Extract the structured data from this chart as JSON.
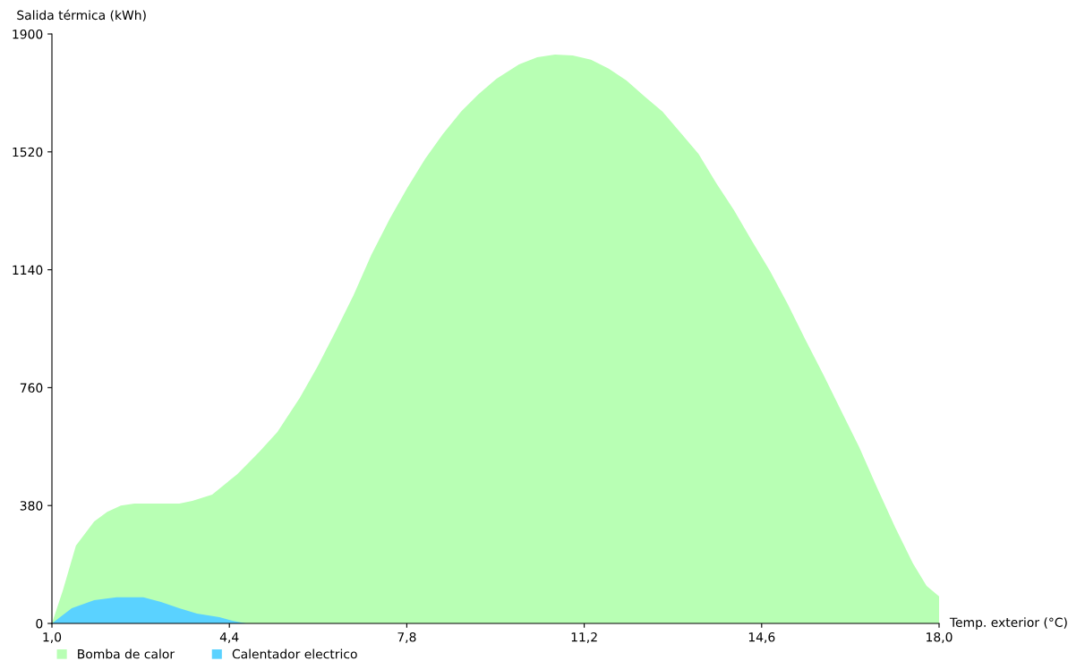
{
  "chart_data": {
    "type": "area",
    "ylabel": "Salida térmica (kWh)",
    "xlabel": "Temp. exterior (°C)",
    "xlim": [
      1.0,
      18.0
    ],
    "ylim": [
      0,
      1900
    ],
    "xticks": [
      {
        "value": 1.0,
        "label": "1,0"
      },
      {
        "value": 4.4,
        "label": "4,4"
      },
      {
        "value": 7.8,
        "label": "7,8"
      },
      {
        "value": 11.2,
        "label": "11,2"
      },
      {
        "value": 14.6,
        "label": "14,6"
      },
      {
        "value": 18.0,
        "label": "18,0"
      }
    ],
    "yticks": [
      0,
      380,
      760,
      1140,
      1520,
      1900
    ],
    "grid": false,
    "legend": "bottom left",
    "series": [
      {
        "name": "Bomba de calor",
        "color": "#b8ffb4",
        "x": [
          1.0,
          1.21,
          1.46,
          1.81,
          2.06,
          2.32,
          2.58,
          3.44,
          3.69,
          4.07,
          4.55,
          4.98,
          5.32,
          5.75,
          6.09,
          6.44,
          6.78,
          7.12,
          7.47,
          7.81,
          8.15,
          8.49,
          8.84,
          9.18,
          9.52,
          9.95,
          10.3,
          10.64,
          10.98,
          11.33,
          11.67,
          12.01,
          12.36,
          12.7,
          13.04,
          13.39,
          13.73,
          14.07,
          14.42,
          14.76,
          15.1,
          15.44,
          15.79,
          16.13,
          16.47,
          16.81,
          17.16,
          17.5,
          17.76,
          18.0
        ],
        "values": [
          0,
          107,
          251,
          329,
          360,
          380,
          386,
          386,
          395,
          415,
          481,
          554,
          617,
          727,
          828,
          943,
          1058,
          1188,
          1303,
          1404,
          1497,
          1577,
          1650,
          1707,
          1756,
          1802,
          1825,
          1834,
          1831,
          1817,
          1788,
          1750,
          1698,
          1650,
          1583,
          1514,
          1419,
          1332,
          1231,
          1136,
          1029,
          914,
          799,
          683,
          568,
          438,
          309,
          193,
          121,
          87
        ]
      },
      {
        "name": "Calentador electrico",
        "color": "#5ad2ff",
        "x": [
          1.0,
          1.38,
          1.81,
          2.24,
          2.75,
          3.09,
          3.44,
          3.78,
          4.21,
          4.46,
          4.72
        ],
        "values": [
          0,
          49,
          75,
          84,
          84,
          69,
          49,
          32,
          20,
          9,
          0
        ]
      }
    ]
  }
}
